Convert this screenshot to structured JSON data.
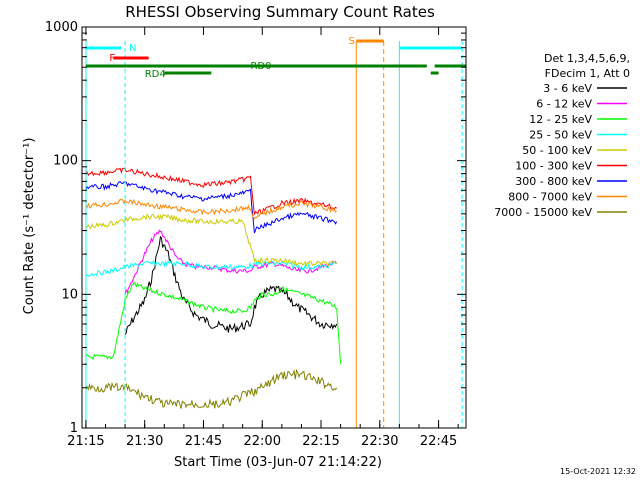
{
  "chart_data": {
    "type": "line",
    "title": "RHESSI Observing Summary Count Rates",
    "xlabel": "Start Time (03-Jun-07 21:14:22)",
    "ylabel": "Count Rate (s⁻¹ detector⁻¹)",
    "y_scale": "log",
    "ylim": [
      1,
      1000
    ],
    "xlim": [
      "21:14",
      "22:52"
    ],
    "x_tick_labels": [
      "21:15",
      "21:30",
      "21:45",
      "22:00",
      "22:15",
      "22:30",
      "22:45"
    ],
    "y_tick_labels": [
      "1",
      "10",
      "100",
      "1000"
    ],
    "timestamp": "15-Oct-2021 12:32",
    "legend_header": [
      "Det 1,3,4,5,6,9,",
      "FDecim 1, Att 0"
    ],
    "series": [
      {
        "name": "3 - 6 keV",
        "color": "#000000",
        "points": [
          [
            "21:25",
            5
          ],
          [
            "21:27",
            6.5
          ],
          [
            "21:30",
            9
          ],
          [
            "21:32",
            14
          ],
          [
            "21:34",
            26
          ],
          [
            "21:36",
            20
          ],
          [
            "21:38",
            13
          ],
          [
            "21:40",
            9
          ],
          [
            "21:43",
            7
          ],
          [
            "21:47",
            6
          ],
          [
            "21:52",
            5.5
          ],
          [
            "21:57",
            6
          ],
          [
            "21:58",
            8
          ],
          [
            "22:00",
            10
          ],
          [
            "22:03",
            11
          ],
          [
            "22:06",
            10
          ],
          [
            "22:09",
            8
          ],
          [
            "22:12",
            7
          ],
          [
            "22:15",
            6
          ],
          [
            "22:18",
            6
          ],
          [
            "22:19",
            6
          ]
        ]
      },
      {
        "name": "6 - 12 keV",
        "color": "#ff00ff",
        "points": [
          [
            "21:25",
            10
          ],
          [
            "21:27",
            13
          ],
          [
            "21:30",
            20
          ],
          [
            "21:32",
            26
          ],
          [
            "21:34",
            30
          ],
          [
            "21:36",
            24
          ],
          [
            "21:38",
            19
          ],
          [
            "21:40",
            17
          ],
          [
            "21:43",
            16
          ],
          [
            "21:47",
            16
          ],
          [
            "21:52",
            15
          ],
          [
            "21:57",
            15
          ],
          [
            "21:58",
            16
          ],
          [
            "22:03",
            17
          ],
          [
            "22:06",
            16
          ],
          [
            "22:09",
            15
          ],
          [
            "22:12",
            15
          ],
          [
            "22:15",
            16
          ],
          [
            "22:18",
            17
          ],
          [
            "22:19",
            17
          ]
        ]
      },
      {
        "name": "12 - 25 keV",
        "color": "#00ff00",
        "points": [
          [
            "21:15",
            3.4
          ],
          [
            "21:22",
            3.4
          ],
          [
            "21:25",
            9
          ],
          [
            "21:27",
            12
          ],
          [
            "21:30",
            11
          ],
          [
            "21:35",
            10
          ],
          [
            "21:40",
            9
          ],
          [
            "21:45",
            8
          ],
          [
            "21:50",
            7.5
          ],
          [
            "21:55",
            7.5
          ],
          [
            "21:57",
            8
          ],
          [
            "21:58",
            9
          ],
          [
            "22:00",
            10
          ],
          [
            "22:03",
            10
          ],
          [
            "22:05",
            11
          ],
          [
            "22:10",
            10
          ],
          [
            "22:15",
            9
          ],
          [
            "22:19",
            8
          ],
          [
            "22:20",
            3
          ]
        ]
      },
      {
        "name": "25 - 50 keV",
        "color": "#00ffff",
        "points": [
          [
            "21:15",
            14
          ],
          [
            "21:22",
            15
          ],
          [
            "21:25",
            16
          ],
          [
            "21:30",
            17
          ],
          [
            "21:35",
            17
          ],
          [
            "21:40",
            17
          ],
          [
            "21:45",
            16
          ],
          [
            "21:50",
            16
          ],
          [
            "21:55",
            16
          ],
          [
            "22:00",
            17
          ],
          [
            "22:05",
            17
          ],
          [
            "22:10",
            16
          ],
          [
            "22:15",
            16
          ],
          [
            "22:19",
            17
          ]
        ]
      },
      {
        "name": "50 - 100 keV",
        "color": "#cccc00",
        "points": [
          [
            "21:15",
            32
          ],
          [
            "21:20",
            33
          ],
          [
            "21:25",
            36
          ],
          [
            "21:30",
            38
          ],
          [
            "21:35",
            38
          ],
          [
            "21:40",
            36
          ],
          [
            "21:45",
            35
          ],
          [
            "21:50",
            35
          ],
          [
            "21:55",
            35
          ],
          [
            "21:58",
            18
          ],
          [
            "22:00",
            18
          ],
          [
            "22:05",
            18
          ],
          [
            "22:10",
            17
          ],
          [
            "22:15",
            17
          ],
          [
            "22:19",
            17
          ]
        ]
      },
      {
        "name": "100 - 300 keV",
        "color": "#ff0000",
        "points": [
          [
            "21:15",
            80
          ],
          [
            "21:20",
            82
          ],
          [
            "21:25",
            85
          ],
          [
            "21:30",
            80
          ],
          [
            "21:35",
            75
          ],
          [
            "21:40",
            70
          ],
          [
            "21:45",
            66
          ],
          [
            "21:50",
            68
          ],
          [
            "21:55",
            72
          ],
          [
            "21:57",
            75
          ],
          [
            "21:58",
            40
          ],
          [
            "22:00",
            42
          ],
          [
            "22:05",
            48
          ],
          [
            "22:10",
            50
          ],
          [
            "22:15",
            47
          ],
          [
            "22:19",
            44
          ]
        ]
      },
      {
        "name": "300 - 800 keV",
        "color": "#0000ff",
        "points": [
          [
            "21:15",
            63
          ],
          [
            "21:20",
            64
          ],
          [
            "21:25",
            68
          ],
          [
            "21:30",
            62
          ],
          [
            "21:35",
            58
          ],
          [
            "21:40",
            54
          ],
          [
            "21:45",
            52
          ],
          [
            "21:50",
            54
          ],
          [
            "21:55",
            57
          ],
          [
            "21:57",
            59
          ],
          [
            "21:58",
            30
          ],
          [
            "22:00",
            32
          ],
          [
            "22:05",
            37
          ],
          [
            "22:10",
            40
          ],
          [
            "22:15",
            37
          ],
          [
            "22:19",
            35
          ]
        ]
      },
      {
        "name": "800 - 7000 keV",
        "color": "#ff8800",
        "points": [
          [
            "21:15",
            46
          ],
          [
            "21:20",
            47
          ],
          [
            "21:25",
            50
          ],
          [
            "21:30",
            47
          ],
          [
            "21:35",
            45
          ],
          [
            "21:40",
            43
          ],
          [
            "21:45",
            41
          ],
          [
            "21:50",
            42
          ],
          [
            "21:55",
            44
          ],
          [
            "21:57",
            45
          ],
          [
            "21:58",
            36
          ],
          [
            "22:00",
            40
          ],
          [
            "22:05",
            45
          ],
          [
            "22:10",
            48
          ],
          [
            "22:15",
            45
          ],
          [
            "22:19",
            42
          ]
        ]
      },
      {
        "name": "7000 - 15000 keV",
        "color": "#808000",
        "points": [
          [
            "21:15",
            2
          ],
          [
            "21:25",
            2
          ],
          [
            "21:35",
            1.5
          ],
          [
            "21:50",
            1.5
          ],
          [
            "22:00",
            2
          ],
          [
            "22:05",
            2.5
          ],
          [
            "22:10",
            2.5
          ],
          [
            "22:19",
            2
          ]
        ]
      }
    ],
    "flags": [
      {
        "label": "N",
        "color": "#00ffff"
      },
      {
        "label": "F",
        "color": "#ff0000"
      },
      {
        "label": "RD0",
        "color": "#008000"
      },
      {
        "label": "RD4",
        "color": "#008000"
      },
      {
        "label": "S",
        "color": "#ff8800"
      }
    ]
  }
}
